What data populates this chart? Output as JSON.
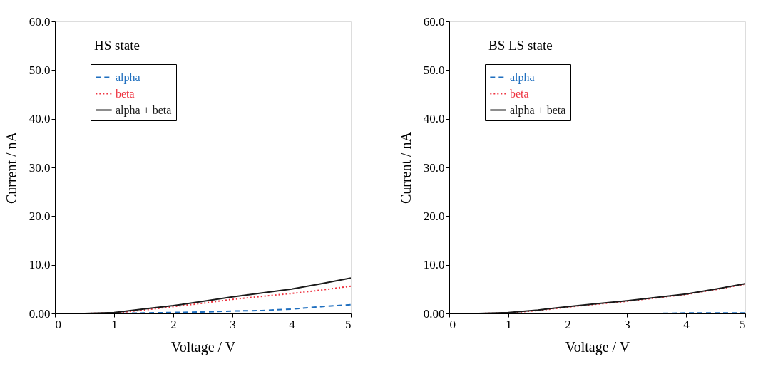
{
  "chart_data": [
    {
      "type": "line",
      "title": "HS state",
      "xlabel": "Voltage / V",
      "ylabel": "Current / nA",
      "x": [
        0,
        0.5,
        1,
        1.5,
        2,
        2.5,
        3,
        3.5,
        4,
        4.5,
        5
      ],
      "xlim": [
        0,
        5
      ],
      "xticks": [
        0,
        1,
        2,
        3,
        4,
        5
      ],
      "ylim": [
        0,
        60
      ],
      "yticks": [
        {
          "value": 0,
          "label": "0.00"
        },
        {
          "value": 10,
          "label": "10.0"
        },
        {
          "value": 20,
          "label": "20.0"
        },
        {
          "value": 30,
          "label": "30.0"
        },
        {
          "value": 40,
          "label": "40.0"
        },
        {
          "value": 50,
          "label": "50.0"
        },
        {
          "value": 60,
          "label": "60.0"
        }
      ],
      "grid": false,
      "legend": "top left",
      "marker": "none",
      "series": [
        {
          "name": "alpha",
          "color": "#1f6fbf",
          "line_style": "dashed",
          "values": [
            0,
            0,
            0,
            0.1,
            0.2,
            0.3,
            0.5,
            0.6,
            0.9,
            1.4,
            1.8
          ]
        },
        {
          "name": "beta",
          "color": "#ee3340",
          "line_style": "dotted",
          "values": [
            0,
            0,
            0.1,
            0.7,
            1.4,
            2.1,
            2.9,
            3.5,
            4.1,
            4.8,
            5.6
          ]
        },
        {
          "name": "alpha + beta",
          "color": "#1a1a1a",
          "line_style": "solid",
          "values": [
            0,
            0,
            0.2,
            0.9,
            1.6,
            2.5,
            3.4,
            4.2,
            5.0,
            6.1,
            7.3
          ]
        }
      ]
    },
    {
      "type": "line",
      "title": "BS LS state",
      "xlabel": "Voltage / V",
      "ylabel": "Current / nA",
      "x": [
        0,
        0.5,
        1,
        1.5,
        2,
        2.5,
        3,
        3.5,
        4,
        4.5,
        5
      ],
      "xlim": [
        0,
        5
      ],
      "xticks": [
        0,
        1,
        2,
        3,
        4,
        5
      ],
      "ylim": [
        0,
        60
      ],
      "yticks": [
        {
          "value": 0,
          "label": "0.00"
        },
        {
          "value": 10,
          "label": "10.0"
        },
        {
          "value": 20,
          "label": "20.0"
        },
        {
          "value": 30,
          "label": "30.0"
        },
        {
          "value": 40,
          "label": "40.0"
        },
        {
          "value": 50,
          "label": "50.0"
        },
        {
          "value": 60,
          "label": "60.0"
        }
      ],
      "grid": false,
      "legend": "top left",
      "marker": "none",
      "series": [
        {
          "name": "alpha",
          "color": "#1f6fbf",
          "line_style": "dashed",
          "values": [
            0,
            0,
            0,
            0,
            0,
            0,
            0,
            0,
            0.1,
            0.1,
            0.1
          ]
        },
        {
          "name": "beta",
          "color": "#ee3340",
          "line_style": "dotted",
          "values": [
            0,
            0,
            0.1,
            0.6,
            1.3,
            1.9,
            2.5,
            3.2,
            3.9,
            4.9,
            6.0
          ]
        },
        {
          "name": "alpha + beta",
          "color": "#1a1a1a",
          "line_style": "solid",
          "values": [
            0,
            0,
            0.2,
            0.7,
            1.4,
            2.0,
            2.6,
            3.3,
            4.0,
            5.0,
            6.1
          ]
        }
      ]
    }
  ]
}
